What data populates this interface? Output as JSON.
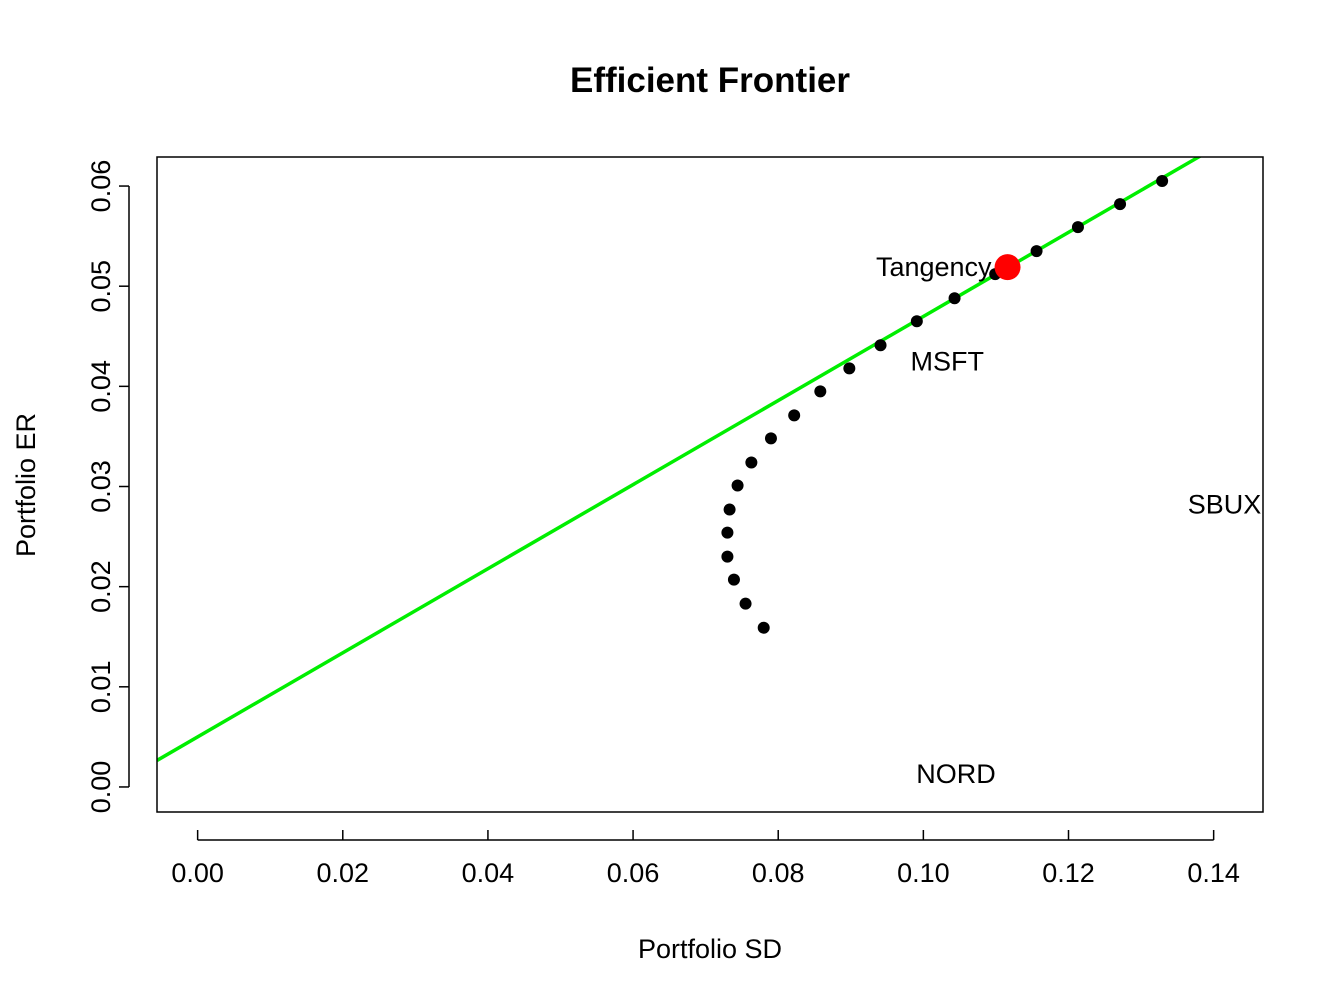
{
  "chart_data": {
    "type": "scatter",
    "title": "Efficient Frontier",
    "xlabel": "Portfolio SD",
    "ylabel": "Portfolio ER",
    "xlim": [
      -0.0056,
      0.1468
    ],
    "ylim": [
      -0.0025,
      0.0629
    ],
    "xticks": [
      "0.00",
      "0.02",
      "0.04",
      "0.06",
      "0.08",
      "0.10",
      "0.12",
      "0.14"
    ],
    "xtick_values": [
      0,
      0.02,
      0.04,
      0.06,
      0.08,
      0.1,
      0.12,
      0.14
    ],
    "yticks": [
      "0.00",
      "0.01",
      "0.02",
      "0.03",
      "0.04",
      "0.05",
      "0.06"
    ],
    "ytick_values": [
      0,
      0.01,
      0.02,
      0.03,
      0.04,
      0.05,
      0.06
    ],
    "grid": false,
    "frontier": {
      "color": "#000000",
      "x": [
        0.078,
        0.0755,
        0.0739,
        0.073,
        0.073,
        0.0733,
        0.0744,
        0.0763,
        0.079,
        0.0822,
        0.0858,
        0.0898,
        0.0941,
        0.0991,
        0.1043,
        0.1099,
        0.1156,
        0.1213,
        0.1271,
        0.1329
      ],
      "y": [
        0.0159,
        0.0183,
        0.0207,
        0.023,
        0.0254,
        0.0277,
        0.0301,
        0.0324,
        0.0348,
        0.0371,
        0.0395,
        0.0418,
        0.0441,
        0.0465,
        0.0488,
        0.0512,
        0.0535,
        0.0559,
        0.0582,
        0.0605
      ]
    },
    "tangency_point": {
      "label": "Tangency",
      "x": 0.1116,
      "y": 0.0519,
      "color": "#ff0000"
    },
    "tangent_line": {
      "color": "#00ee00",
      "intercept": 0.005,
      "slope": 0.4198
    },
    "asset_labels": [
      {
        "text": "MSFT",
        "x": 0.1033,
        "y": 0.0425
      },
      {
        "text": "NORD",
        "x": 0.1045,
        "y": 0.0013
      },
      {
        "text": "SBUX",
        "x": 0.1415,
        "y": 0.0282
      }
    ]
  }
}
